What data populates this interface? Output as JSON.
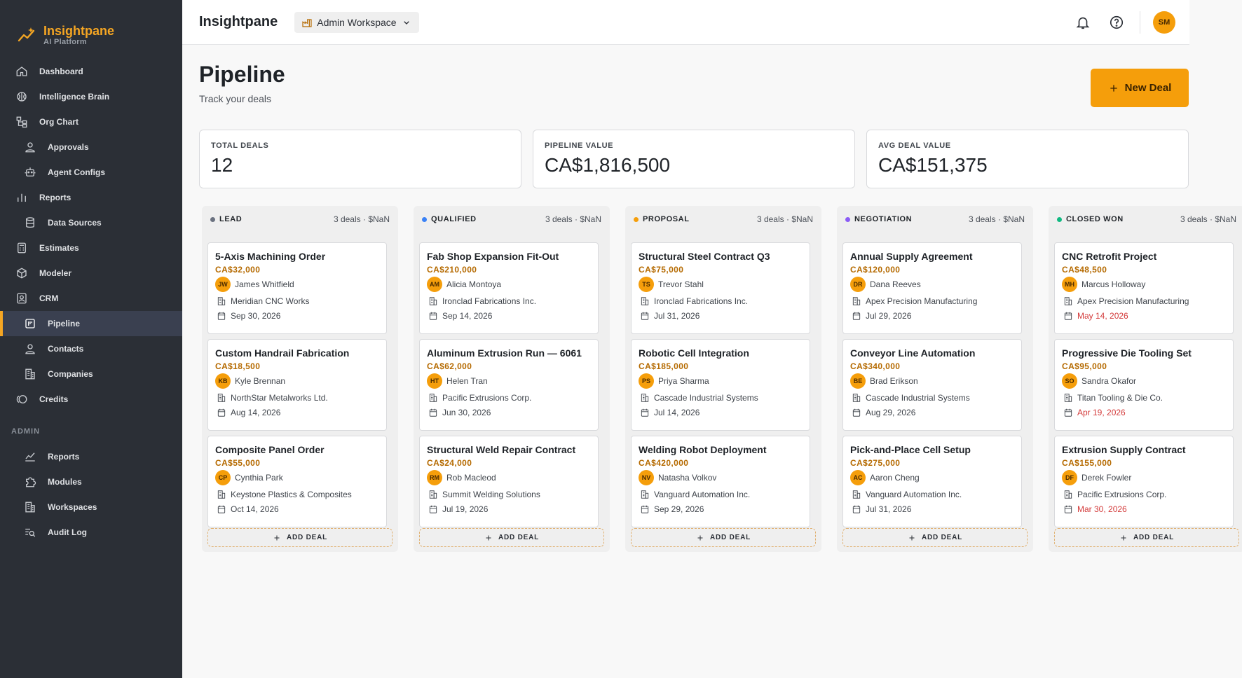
{
  "brand": {
    "name": "Insightpane",
    "subtitle": "AI Platform"
  },
  "sidebar": {
    "items": [
      {
        "label": "Dashboard",
        "icon": "home-icon"
      },
      {
        "label": "Intelligence Brain",
        "icon": "brain-icon"
      },
      {
        "label": "Org Chart",
        "icon": "org-chart-icon"
      },
      {
        "label": "Approvals",
        "icon": "user-check-icon"
      },
      {
        "label": "Agent Configs",
        "icon": "robot-icon"
      },
      {
        "label": "Reports",
        "icon": "bar-chart-icon"
      },
      {
        "label": "Data Sources",
        "icon": "database-icon"
      },
      {
        "label": "Estimates",
        "icon": "calculator-icon"
      },
      {
        "label": "Modeler",
        "icon": "cube-icon"
      },
      {
        "label": "CRM",
        "icon": "contact-card-icon"
      },
      {
        "label": "Pipeline",
        "icon": "kanban-icon"
      },
      {
        "label": "Contacts",
        "icon": "user-icon"
      },
      {
        "label": "Companies",
        "icon": "building-icon"
      },
      {
        "label": "Credits",
        "icon": "coins-icon"
      }
    ],
    "admin_section": "ADMIN",
    "admin_items": [
      {
        "label": "Reports",
        "icon": "line-chart-icon"
      },
      {
        "label": "Modules",
        "icon": "puzzle-icon"
      },
      {
        "label": "Workspaces",
        "icon": "building-icon"
      },
      {
        "label": "Audit Log",
        "icon": "search-list-icon"
      }
    ]
  },
  "header": {
    "title": "Insightpane",
    "workspace": "Admin Workspace",
    "avatar": "SM"
  },
  "page": {
    "title": "Pipeline",
    "subtitle": "Track your deals",
    "new_deal_label": "New Deal"
  },
  "stats": [
    {
      "label": "TOTAL DEALS",
      "value": "12"
    },
    {
      "label": "PIPELINE VALUE",
      "value": "CA$1,816,500"
    },
    {
      "label": "AVG DEAL VALUE",
      "value": "CA$151,375"
    }
  ],
  "columns": [
    {
      "title": "LEAD",
      "count": "3 deals · $NaN",
      "color": "#6b7280",
      "add_label": "ADD DEAL",
      "deals": [
        {
          "title": "5-Axis Machining Order",
          "value": "CA$32,000",
          "initials": "JW",
          "contact": "James Whitfield",
          "company": "Meridian CNC Works",
          "date": "Sep 30, 2026",
          "overdue": false
        },
        {
          "title": "Custom Handrail Fabrication",
          "value": "CA$18,500",
          "initials": "KB",
          "contact": "Kyle Brennan",
          "company": "NorthStar Metalworks Ltd.",
          "date": "Aug 14, 2026",
          "overdue": false
        },
        {
          "title": "Composite Panel Order",
          "value": "CA$55,000",
          "initials": "CP",
          "contact": "Cynthia Park",
          "company": "Keystone Plastics & Composites",
          "date": "Oct 14, 2026",
          "overdue": false
        }
      ]
    },
    {
      "title": "QUALIFIED",
      "count": "3 deals · $NaN",
      "color": "#3b82f6",
      "add_label": "ADD DEAL",
      "deals": [
        {
          "title": "Fab Shop Expansion Fit-Out",
          "value": "CA$210,000",
          "initials": "AM",
          "contact": "Alicia Montoya",
          "company": "Ironclad Fabrications Inc.",
          "date": "Sep 14, 2026",
          "overdue": false
        },
        {
          "title": "Aluminum Extrusion Run — 6061",
          "value": "CA$62,000",
          "initials": "HT",
          "contact": "Helen Tran",
          "company": "Pacific Extrusions Corp.",
          "date": "Jun 30, 2026",
          "overdue": false
        },
        {
          "title": "Structural Weld Repair Contract",
          "value": "CA$24,000",
          "initials": "RM",
          "contact": "Rob Macleod",
          "company": "Summit Welding Solutions",
          "date": "Jul 19, 2026",
          "overdue": false
        }
      ]
    },
    {
      "title": "PROPOSAL",
      "count": "3 deals · $NaN",
      "color": "#f59e0b",
      "add_label": "ADD DEAL",
      "deals": [
        {
          "title": "Structural Steel Contract Q3",
          "value": "CA$75,000",
          "initials": "TS",
          "contact": "Trevor Stahl",
          "company": "Ironclad Fabrications Inc.",
          "date": "Jul 31, 2026",
          "overdue": false
        },
        {
          "title": "Robotic Cell Integration",
          "value": "CA$185,000",
          "initials": "PS",
          "contact": "Priya Sharma",
          "company": "Cascade Industrial Systems",
          "date": "Jul 14, 2026",
          "overdue": false
        },
        {
          "title": "Welding Robot Deployment",
          "value": "CA$420,000",
          "initials": "NV",
          "contact": "Natasha Volkov",
          "company": "Vanguard Automation Inc.",
          "date": "Sep 29, 2026",
          "overdue": false
        }
      ]
    },
    {
      "title": "NEGOTIATION",
      "count": "3 deals · $NaN",
      "color": "#8b5cf6",
      "add_label": "ADD DEAL",
      "deals": [
        {
          "title": "Annual Supply Agreement",
          "value": "CA$120,000",
          "initials": "DR",
          "contact": "Dana Reeves",
          "company": "Apex Precision Manufacturing",
          "date": "Jul 29, 2026",
          "overdue": false
        },
        {
          "title": "Conveyor Line Automation",
          "value": "CA$340,000",
          "initials": "BE",
          "contact": "Brad Erikson",
          "company": "Cascade Industrial Systems",
          "date": "Aug 29, 2026",
          "overdue": false
        },
        {
          "title": "Pick-and-Place Cell Setup",
          "value": "CA$275,000",
          "initials": "AC",
          "contact": "Aaron Cheng",
          "company": "Vanguard Automation Inc.",
          "date": "Jul 31, 2026",
          "overdue": false
        }
      ]
    },
    {
      "title": "CLOSED WON",
      "count": "3 deals · $NaN",
      "color": "#10b981",
      "add_label": "ADD DEAL",
      "deals": [
        {
          "title": "CNC Retrofit Project",
          "value": "CA$48,500",
          "initials": "MH",
          "contact": "Marcus Holloway",
          "company": "Apex Precision Manufacturing",
          "date": "May 14, 2026",
          "overdue": true
        },
        {
          "title": "Progressive Die Tooling Set",
          "value": "CA$95,000",
          "initials": "SO",
          "contact": "Sandra Okafor",
          "company": "Titan Tooling & Die Co.",
          "date": "Apr 19, 2026",
          "overdue": true
        },
        {
          "title": "Extrusion Supply Contract",
          "value": "CA$155,000",
          "initials": "DF",
          "contact": "Derek Fowler",
          "company": "Pacific Extrusions Corp.",
          "date": "Mar 30, 2026",
          "overdue": true
        }
      ]
    }
  ]
}
